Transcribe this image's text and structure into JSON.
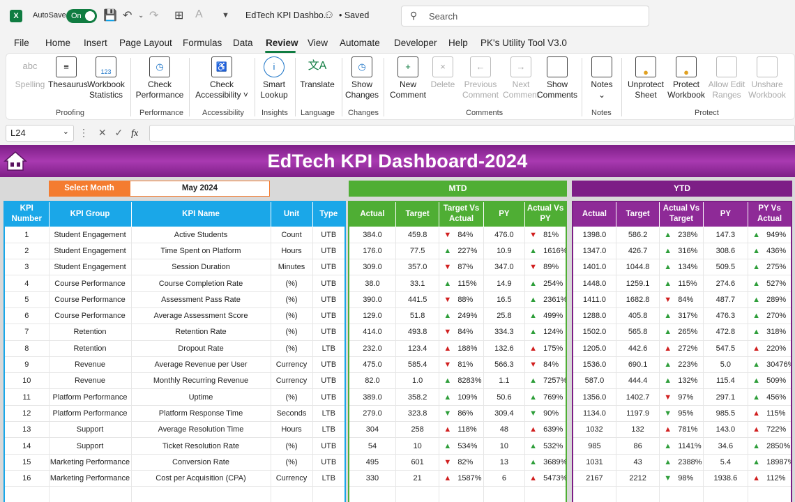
{
  "titlebar": {
    "autosave_label": "AutoSave",
    "toggle_label": "On",
    "doc_title": "EdTech KPI Dashbo...",
    "saved": "• Saved",
    "search_placeholder": "Search"
  },
  "menu": [
    "File",
    "Home",
    "Insert",
    "Page Layout",
    "Formulas",
    "Data",
    "Review",
    "View",
    "Automate",
    "Developer",
    "Help",
    "PK's Utility Tool V3.0"
  ],
  "menu_active": "Review",
  "ribbon": {
    "spelling": "Spelling",
    "thesaurus": "Thesaurus",
    "workbook_statistics_1": "Workbook",
    "workbook_statistics_2": "Statistics",
    "proofing": "Proofing",
    "check_performance_1": "Check",
    "check_performance_2": "Performance",
    "performance": "Performance",
    "check_accessibility_1": "Check",
    "check_accessibility_2": "Accessibility ˅",
    "accessibility": "Accessibility",
    "smart_lookup_1": "Smart",
    "smart_lookup_2": "Lookup",
    "insights": "Insights",
    "translate": "Translate",
    "language": "Language",
    "show_changes_1": "Show",
    "show_changes_2": "Changes",
    "changes": "Changes",
    "new_comment_1": "New",
    "new_comment_2": "Comment",
    "delete": "Delete",
    "previous_comment_1": "Previous",
    "previous_comment_2": "Comment",
    "next_comment_1": "Next",
    "next_comment_2": "Comment",
    "show_comments_1": "Show",
    "show_comments_2": "Comments",
    "comments": "Comments",
    "notes_btn": "Notes",
    "notes": "Notes",
    "unprotect_sheet_1": "Unprotect",
    "unprotect_sheet_2": "Sheet",
    "protect_workbook_1": "Protect",
    "protect_workbook_2": "Workbook",
    "allow_edit_ranges_1": "Allow Edit",
    "allow_edit_ranges_2": "Ranges",
    "unshare_workbook_1": "Unshare",
    "unshare_workbook_2": "Workbook",
    "protect": "Protect"
  },
  "formula_bar": {
    "cell_ref": "L24",
    "fx": "fx"
  },
  "dashboard": {
    "title": "EdTech KPI Dashboard-2024",
    "select_month_label": "Select Month",
    "select_month_value": "May 2024",
    "mtd_label": "MTD",
    "ytd_label": "YTD",
    "main_headers": [
      "KPI Number",
      "KPI Group",
      "KPI Name",
      "Unit",
      "Type"
    ],
    "mtd_headers": [
      "Actual",
      "Target",
      "Target Vs Actual",
      "PY",
      "Actual Vs PY"
    ],
    "ytd_headers": [
      "Actual",
      "Target",
      "Actual Vs Target",
      "PY",
      "PY Vs Actual"
    ],
    "colors": {
      "main": "#1aa7e8",
      "mtd": "#4fae34",
      "ytd": "#7d1e86",
      "select": "#f47c30",
      "up": "#2e9e3a",
      "down": "#d11f1f"
    },
    "rows": [
      {
        "num": "1",
        "group": "Student Engagement",
        "name": "Active Students",
        "unit": "Count",
        "type": "UTB",
        "m_act": "384.0",
        "m_tgt": "459.8",
        "m_tva_dir": "down",
        "m_tva": "84%",
        "m_py": "476.0",
        "m_avp_dir": "down",
        "m_avp": "81%",
        "y_act": "1398.0",
        "y_tgt": "586.2",
        "y_avt_dir": "up",
        "y_avt": "238%",
        "y_py": "147.3",
        "y_pva_dir": "up",
        "y_pva": "949%"
      },
      {
        "num": "2",
        "group": "Student Engagement",
        "name": "Time Spent on Platform",
        "unit": "Hours",
        "type": "UTB",
        "m_act": "176.0",
        "m_tgt": "77.5",
        "m_tva_dir": "up",
        "m_tva": "227%",
        "m_py": "10.9",
        "m_avp_dir": "up",
        "m_avp": "1616%",
        "y_act": "1347.0",
        "y_tgt": "426.7",
        "y_avt_dir": "up",
        "y_avt": "316%",
        "y_py": "308.6",
        "y_pva_dir": "up",
        "y_pva": "436%"
      },
      {
        "num": "3",
        "group": "Student Engagement",
        "name": "Session Duration",
        "unit": "Minutes",
        "type": "UTB",
        "m_act": "309.0",
        "m_tgt": "357.0",
        "m_tva_dir": "down",
        "m_tva": "87%",
        "m_py": "347.0",
        "m_avp_dir": "down",
        "m_avp": "89%",
        "y_act": "1401.0",
        "y_tgt": "1044.8",
        "y_avt_dir": "up",
        "y_avt": "134%",
        "y_py": "509.5",
        "y_pva_dir": "up",
        "y_pva": "275%"
      },
      {
        "num": "4",
        "group": "Course Performance",
        "name": "Course Completion Rate",
        "unit": "(%)",
        "type": "UTB",
        "m_act": "38.0",
        "m_tgt": "33.1",
        "m_tva_dir": "up",
        "m_tva": "115%",
        "m_py": "14.9",
        "m_avp_dir": "up",
        "m_avp": "254%",
        "y_act": "1448.0",
        "y_tgt": "1259.1",
        "y_avt_dir": "up",
        "y_avt": "115%",
        "y_py": "274.6",
        "y_pva_dir": "up",
        "y_pva": "527%"
      },
      {
        "num": "5",
        "group": "Course Performance",
        "name": "Assessment Pass Rate",
        "unit": "(%)",
        "type": "UTB",
        "m_act": "390.0",
        "m_tgt": "441.5",
        "m_tva_dir": "down",
        "m_tva": "88%",
        "m_py": "16.5",
        "m_avp_dir": "up",
        "m_avp": "2361%",
        "y_act": "1411.0",
        "y_tgt": "1682.8",
        "y_avt_dir": "down",
        "y_avt": "84%",
        "y_py": "487.7",
        "y_pva_dir": "up",
        "y_pva": "289%"
      },
      {
        "num": "6",
        "group": "Course Performance",
        "name": "Average Assessment Score",
        "unit": "(%)",
        "type": "UTB",
        "m_act": "129.0",
        "m_tgt": "51.8",
        "m_tva_dir": "up",
        "m_tva": "249%",
        "m_py": "25.8",
        "m_avp_dir": "up",
        "m_avp": "499%",
        "y_act": "1288.0",
        "y_tgt": "405.8",
        "y_avt_dir": "up",
        "y_avt": "317%",
        "y_py": "476.3",
        "y_pva_dir": "up",
        "y_pva": "270%"
      },
      {
        "num": "7",
        "group": "Retention",
        "name": "Retention Rate",
        "unit": "(%)",
        "type": "UTB",
        "m_act": "414.0",
        "m_tgt": "493.8",
        "m_tva_dir": "down",
        "m_tva": "84%",
        "m_py": "334.3",
        "m_avp_dir": "up",
        "m_avp": "124%",
        "y_act": "1502.0",
        "y_tgt": "565.8",
        "y_avt_dir": "up",
        "y_avt": "265%",
        "y_py": "472.8",
        "y_pva_dir": "up",
        "y_pva": "318%"
      },
      {
        "num": "8",
        "group": "Retention",
        "name": "Dropout Rate",
        "unit": "(%)",
        "type": "LTB",
        "m_act": "232.0",
        "m_tgt": "123.4",
        "m_tva_dir": "upred",
        "m_tva": "188%",
        "m_py": "132.6",
        "m_avp_dir": "upred",
        "m_avp": "175%",
        "y_act": "1205.0",
        "y_tgt": "442.6",
        "y_avt_dir": "upred",
        "y_avt": "272%",
        "y_py": "547.5",
        "y_pva_dir": "upred",
        "y_pva": "220%"
      },
      {
        "num": "9",
        "group": "Revenue",
        "name": "Average Revenue per User",
        "unit": "Currency",
        "type": "UTB",
        "m_act": "475.0",
        "m_tgt": "585.4",
        "m_tva_dir": "down",
        "m_tva": "81%",
        "m_py": "566.3",
        "m_avp_dir": "down",
        "m_avp": "84%",
        "y_act": "1536.0",
        "y_tgt": "690.1",
        "y_avt_dir": "up",
        "y_avt": "223%",
        "y_py": "5.0",
        "y_pva_dir": "up",
        "y_pva": "30476%"
      },
      {
        "num": "10",
        "group": "Revenue",
        "name": "Monthly Recurring Revenue",
        "unit": "Currency",
        "type": "UTB",
        "m_act": "82.0",
        "m_tgt": "1.0",
        "m_tva_dir": "up",
        "m_tva": "8283%",
        "m_py": "1.1",
        "m_avp_dir": "up",
        "m_avp": "7257%",
        "y_act": "587.0",
        "y_tgt": "444.4",
        "y_avt_dir": "up",
        "y_avt": "132%",
        "y_py": "115.4",
        "y_pva_dir": "up",
        "y_pva": "509%"
      },
      {
        "num": "11",
        "group": "Platform Performance",
        "name": "Uptime",
        "unit": "(%)",
        "type": "UTB",
        "m_act": "389.0",
        "m_tgt": "358.2",
        "m_tva_dir": "up",
        "m_tva": "109%",
        "m_py": "50.6",
        "m_avp_dir": "up",
        "m_avp": "769%",
        "y_act": "1356.0",
        "y_tgt": "1402.7",
        "y_avt_dir": "down",
        "y_avt": "97%",
        "y_py": "297.1",
        "y_pva_dir": "up",
        "y_pva": "456%"
      },
      {
        "num": "12",
        "group": "Platform Performance",
        "name": "Platform Response Time",
        "unit": "Seconds",
        "type": "LTB",
        "m_act": "279.0",
        "m_tgt": "323.8",
        "m_tva_dir": "downgreen",
        "m_tva": "86%",
        "m_py": "309.4",
        "m_avp_dir": "downgreen",
        "m_avp": "90%",
        "y_act": "1134.0",
        "y_tgt": "1197.9",
        "y_avt_dir": "downgreen",
        "y_avt": "95%",
        "y_py": "985.5",
        "y_pva_dir": "upred",
        "y_pva": "115%"
      },
      {
        "num": "13",
        "group": "Support",
        "name": "Average Resolution Time",
        "unit": "Hours",
        "type": "LTB",
        "m_act": "304",
        "m_tgt": "258",
        "m_tva_dir": "upred",
        "m_tva": "118%",
        "m_py": "48",
        "m_avp_dir": "upred",
        "m_avp": "639%",
        "y_act": "1032",
        "y_tgt": "132",
        "y_avt_dir": "upred",
        "y_avt": "781%",
        "y_py": "143.0",
        "y_pva_dir": "upred",
        "y_pva": "722%"
      },
      {
        "num": "14",
        "group": "Support",
        "name": "Ticket Resolution Rate",
        "unit": "(%)",
        "type": "UTB",
        "m_act": "54",
        "m_tgt": "10",
        "m_tva_dir": "up",
        "m_tva": "534%",
        "m_py": "10",
        "m_avp_dir": "up",
        "m_avp": "532%",
        "y_act": "985",
        "y_tgt": "86",
        "y_avt_dir": "up",
        "y_avt": "1141%",
        "y_py": "34.6",
        "y_pva_dir": "up",
        "y_pva": "2850%"
      },
      {
        "num": "15",
        "group": "Marketing Performance",
        "name": "Conversion Rate",
        "unit": "(%)",
        "type": "UTB",
        "m_act": "495",
        "m_tgt": "601",
        "m_tva_dir": "down",
        "m_tva": "82%",
        "m_py": "13",
        "m_avp_dir": "up",
        "m_avp": "3689%",
        "y_act": "1031",
        "y_tgt": "43",
        "y_avt_dir": "up",
        "y_avt": "2388%",
        "y_py": "5.4",
        "y_pva_dir": "up",
        "y_pva": "18987%"
      },
      {
        "num": "16",
        "group": "Marketing Performance",
        "name": "Cost per Acquisition (CPA)",
        "unit": "Currency",
        "type": "LTB",
        "m_act": "330",
        "m_tgt": "21",
        "m_tva_dir": "upred",
        "m_tva": "1587%",
        "m_py": "6",
        "m_avp_dir": "upred",
        "m_avp": "5473%",
        "y_act": "2167",
        "y_tgt": "2212",
        "y_avt_dir": "downgreen",
        "y_avt": "98%",
        "y_py": "1938.6",
        "y_pva_dir": "upred",
        "y_pva": "112%"
      }
    ]
  }
}
